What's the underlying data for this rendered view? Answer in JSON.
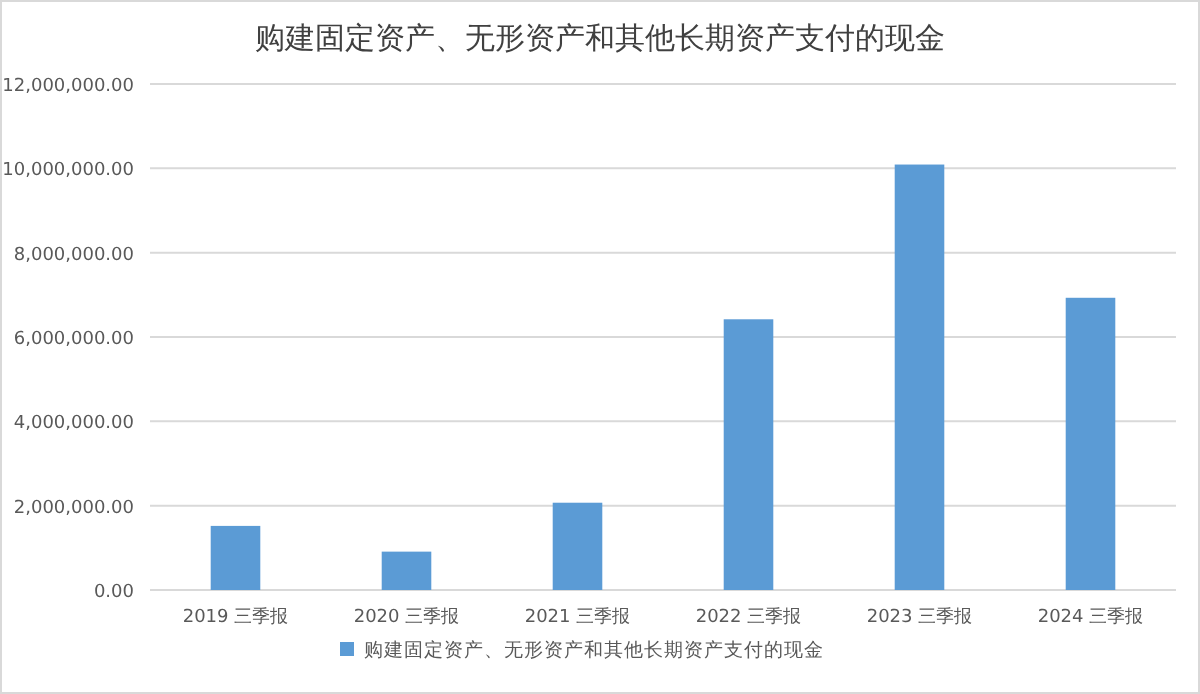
{
  "chart_data": {
    "type": "bar",
    "title": "购建固定资产、无形资产和其他长期资产支付的现金",
    "categories": [
      "2019 三季报",
      "2020 三季报",
      "2021 三季报",
      "2022 三季报",
      "2023 三季报",
      "2024 三季报"
    ],
    "series": [
      {
        "name": "购建固定资产、无形资产和其他长期资产支付的现金",
        "color": "#5b9bd5",
        "values": [
          1520000,
          910000,
          2070000,
          6420000,
          10090000,
          6930000
        ]
      }
    ],
    "ylim": [
      0,
      12000000
    ],
    "yticks": [
      {
        "value": 0,
        "label": "0.00"
      },
      {
        "value": 2000000,
        "label": "2,000,000.00"
      },
      {
        "value": 4000000,
        "label": "4,000,000.00"
      },
      {
        "value": 6000000,
        "label": "6,000,000.00"
      },
      {
        "value": 8000000,
        "label": "8,000,000.00"
      },
      {
        "value": 10000000,
        "label": "10,000,000.00"
      },
      {
        "value": 12000000,
        "label": "12,000,000.00"
      }
    ],
    "grid": "y",
    "legend": "bottom"
  }
}
